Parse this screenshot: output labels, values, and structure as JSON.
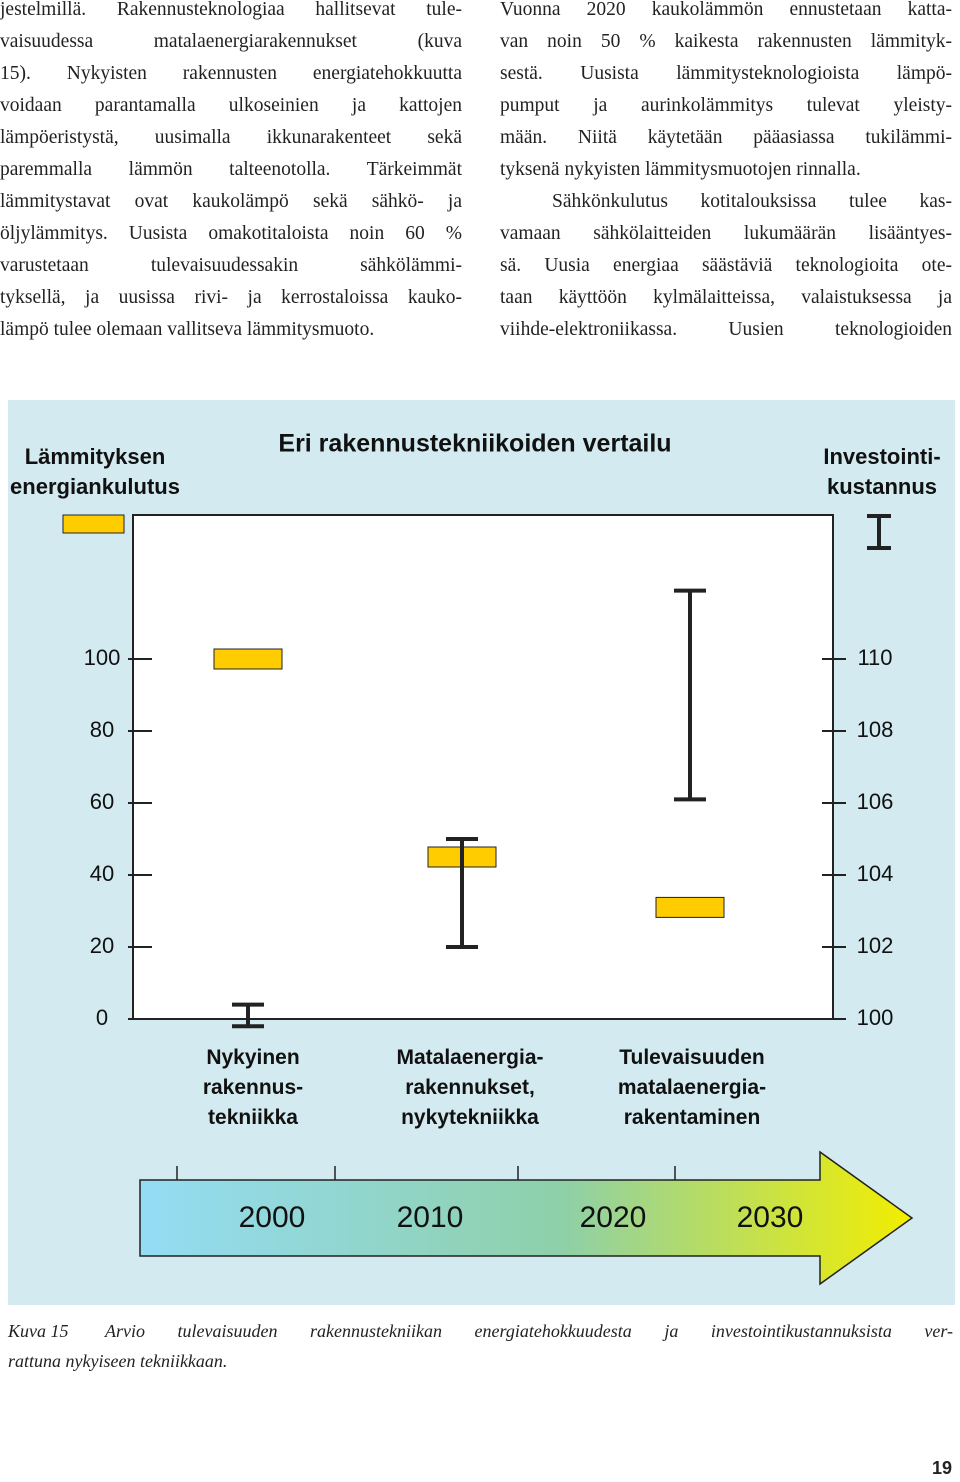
{
  "document": {
    "columns": [
      {
        "paragraphs": [
          [
            "jestelmillä. Rakennusteknologiaa hallitsevat tule-",
            "vaisuudessa matalaenergiarakennukset (kuva",
            "15). Nykyisten rakennusten energiatehokkuutta",
            "voidaan parantamalla ulkoseinien ja kattojen",
            "lämpöeristystä, uusimalla ikkunarakenteet sekä",
            "paremmalla lämmön talteenotolla. Tärkeimmät",
            "lämmitystavat ovat kaukolämpö sekä sähkö- ja",
            "öljylämmitys. Uusista omakotitaloista noin 60 %",
            "varustetaan tulevaisuudessakin sähkölämmi-",
            "tyksellä, ja uusissa rivi- ja kerrostaloissa kauko-",
            "lämpö tulee olemaan vallitseva lämmitysmuoto."
          ]
        ]
      },
      {
        "paragraphs": [
          [
            "Vuonna 2020 kaukolämmön ennustetaan katta-",
            "van noin 50 % kaikesta rakennusten lämmityk-",
            "sestä. Uusista lämmitysteknologioista lämpö-",
            "pumput ja aurinkolämmitys tulevat yleisty-",
            "mään. Niitä käytetään pääasiassa tukilämmi-",
            "tyksenä nykyisten lämmitysmuotojen rinnalla."
          ],
          [
            "Sähkönkulutus kotitalouksissa tulee kas-",
            "vamaan sähkölaitteiden lukumäärän lisääntyes-",
            "sä. Uusia energiaa säästäviä teknologioita ote-",
            "taan käyttöön kylmälaitteissa, valaistuksessa ja",
            "viihde-elektroniikassa. Uusien teknologioiden"
          ]
        ]
      }
    ],
    "caption": {
      "label": "Kuva 15",
      "lines": [
        "Arvio tulevaisuuden rakennustekniikan energiatehokkuudesta ja investointikustannuksista ver-",
        "rattuna nykyiseen tekniikkaan."
      ]
    },
    "page_number": "19"
  },
  "chart_data": {
    "type": "range",
    "title": "Eri rakennustekniikoiden vertailu",
    "categories": [
      "Nykyinen rakennus-tekniikka",
      "Matalaenergia-rakennukset, nykytekniikka",
      "Tulevaisuuden matalaenergia-rakentaminen"
    ],
    "series": [
      {
        "name": "Lämmityksen energiankulutus",
        "color": "#ffcc00",
        "values": [
          100,
          45,
          31
        ]
      },
      {
        "name": "Investointi-kustannus",
        "color": "#222222",
        "axis": "y2",
        "low": [
          99.8,
          102,
          106.1
        ],
        "high": [
          100.4,
          105,
          111.9
        ]
      }
    ],
    "ylim": [
      0,
      140
    ],
    "yticks": [
      0,
      20,
      40,
      60,
      80,
      100
    ],
    "y2lim": [
      100,
      114
    ],
    "y2ticks": [
      100,
      102,
      104,
      106,
      108,
      110
    ],
    "timeline": [
      "2000",
      "2010",
      "2020",
      "2030"
    ]
  }
}
